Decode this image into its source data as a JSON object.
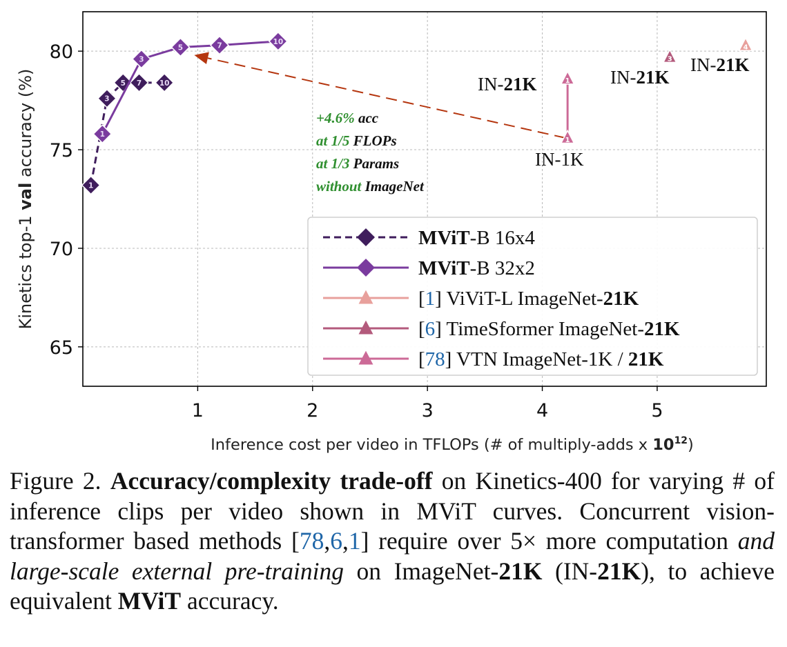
{
  "chart_data": {
    "type": "line",
    "xlabel": "Inference cost per video in TFLOPs (# of multiply-adds x ",
    "xlabel_bold": "10",
    "xlabel_sup": "12",
    "xlabel_end": ")",
    "ylabel_pre": "Kinetics top-1 ",
    "ylabel_bold": "val",
    "ylabel_post": " accuracy (%)",
    "xlim": [
      0,
      5.95
    ],
    "ylim": [
      63,
      82
    ],
    "xticks": [
      1,
      2,
      3,
      4,
      5
    ],
    "xtick_labels": [
      "1",
      "2",
      "3",
      "4",
      "5"
    ],
    "yticks": [
      65,
      70,
      75,
      80
    ],
    "ytick_labels": [
      "65",
      "70",
      "75",
      "80"
    ],
    "grid": true,
    "legend_position": "lower-right",
    "series": [
      {
        "legend_bold": "MViT",
        "legend_rest": "-B 16x4",
        "legend_ref": "",
        "color": "#3f1d5c",
        "dash": true,
        "marker": "diamond",
        "x": [
          0.07,
          0.21,
          0.35,
          0.49,
          0.71
        ],
        "y": [
          73.2,
          77.6,
          78.4,
          78.4,
          78.4
        ],
        "labels": [
          "1",
          "3",
          "5",
          "7",
          "10"
        ]
      },
      {
        "legend_bold": "MViT",
        "legend_rest": "-B 32x2",
        "legend_ref": "",
        "color": "#7a3b9e",
        "dash": false,
        "marker": "diamond",
        "x": [
          0.17,
          0.51,
          0.85,
          1.19,
          1.7
        ],
        "y": [
          75.8,
          79.6,
          80.2,
          80.3,
          80.5
        ],
        "labels": [
          "1",
          "3",
          "5",
          "7",
          "10"
        ]
      },
      {
        "legend_bold": "21K",
        "legend_rest": "] ViViT-L ImageNet-",
        "legend_ref": "1",
        "color": "#e8a09c",
        "dash": false,
        "marker": "triangle",
        "x": [
          5.77
        ],
        "y": [
          80.3
        ],
        "labels": [
          "4"
        ]
      },
      {
        "legend_bold": "21K",
        "legend_rest": "] TimeSformer ImageNet-",
        "legend_ref": "6",
        "color": "#b35a7c",
        "dash": false,
        "marker": "triangle",
        "x": [
          5.11
        ],
        "y": [
          79.7
        ],
        "labels": [
          "3"
        ]
      },
      {
        "legend_bold": "21K",
        "legend_rest": "] VTN ImageNet-1K / ",
        "legend_ref": "78",
        "color": "#cc6a97",
        "dash": false,
        "marker": "triangle",
        "x": [
          4.22,
          4.22
        ],
        "y": [
          75.6,
          78.6
        ],
        "labels": [
          "1",
          "1"
        ]
      }
    ],
    "annotations": {
      "in21k_vtn_pre": "IN-",
      "in21k_vtn_bold": "21K",
      "in1k_vtn": "IN-1K",
      "in21k_ts_pre": "IN-",
      "in21k_ts_bold": "21K",
      "in21k_vivit_pre": "IN-",
      "in21k_vivit_bold": "21K",
      "gain_lines": [
        {
          "green": "+4.6%",
          "black": " acc"
        },
        {
          "green": "at 1/5",
          "black": " FLOPs"
        },
        {
          "green": "at 1/3",
          "black": " Params"
        },
        {
          "green": "without",
          "black": " ImageNet"
        }
      ],
      "arrow": {
        "from_x": 4.2,
        "from_y": 75.6,
        "to_x": 0.97,
        "to_y": 79.8,
        "color": "#b5360f"
      }
    }
  },
  "caption": {
    "fig": "Figure 2.",
    "title_bold": "Accuracy/complexity trade-off",
    "part1": " on Kinetics-400 for varying # of inference clips per video shown in MViT curves. Concurrent vision-transformer based methods [",
    "ref1": "78",
    "comma1": ",",
    "ref2": "6",
    "comma2": ",",
    "ref3": "1",
    "part2": "] require over 5× more computation ",
    "italic": "and large-scale external pre-training",
    "part3": " on ImageNet-",
    "b21k_1": "21K",
    "part4": " (IN-",
    "b21k_2": "21K",
    "part5": "), to achieve equivalent ",
    "bold_mvit": "MViT",
    "part6": " accuracy."
  }
}
